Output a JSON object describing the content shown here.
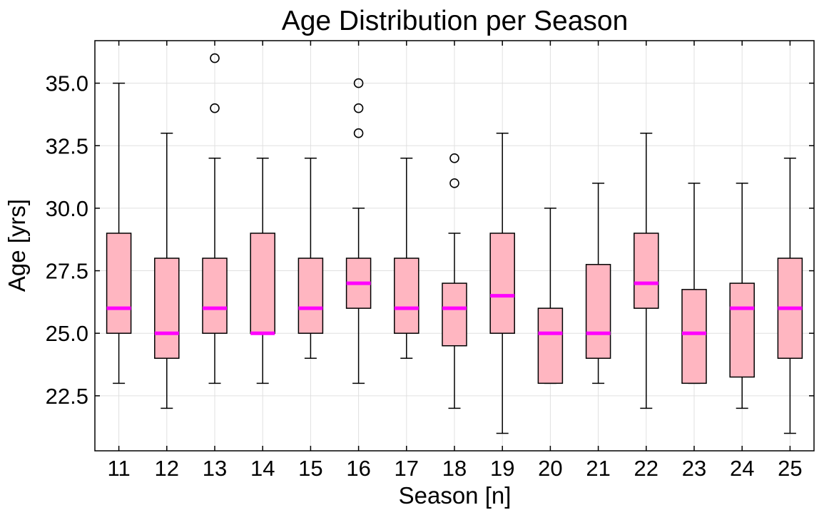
{
  "chart_data": {
    "type": "box",
    "title": "Age Distribution per Season",
    "xlabel": "Season [n]",
    "ylabel": "Age [yrs]",
    "categories": [
      "11",
      "12",
      "13",
      "14",
      "15",
      "16",
      "17",
      "18",
      "19",
      "20",
      "21",
      "22",
      "23",
      "24",
      "25"
    ],
    "ylim": [
      20.3,
      36.7
    ],
    "yticks": [
      22.5,
      25.0,
      27.5,
      30.0,
      32.5,
      35.0
    ],
    "ytick_labels": [
      "22.5",
      "25.0",
      "27.5",
      "30.0",
      "32.5",
      "35.0"
    ],
    "grid": true,
    "colors": {
      "box_fill": "#ffb6c1",
      "median": "#ff00ff",
      "edge": "#000000",
      "grid": "#e0e0e0"
    },
    "boxes": [
      {
        "season": "11",
        "whisker_low": 23,
        "q1": 25,
        "median": 26,
        "q3": 29,
        "whisker_high": 35,
        "outliers": []
      },
      {
        "season": "12",
        "whisker_low": 22,
        "q1": 24,
        "median": 25,
        "q3": 28,
        "whisker_high": 33,
        "outliers": []
      },
      {
        "season": "13",
        "whisker_low": 23,
        "q1": 25,
        "median": 26,
        "q3": 28,
        "whisker_high": 32,
        "outliers": [
          34,
          36
        ]
      },
      {
        "season": "14",
        "whisker_low": 23,
        "q1": 25,
        "median": 25,
        "q3": 29,
        "whisker_high": 32,
        "outliers": []
      },
      {
        "season": "15",
        "whisker_low": 24,
        "q1": 25,
        "median": 26,
        "q3": 28,
        "whisker_high": 32,
        "outliers": []
      },
      {
        "season": "16",
        "whisker_low": 23,
        "q1": 26,
        "median": 27,
        "q3": 28,
        "whisker_high": 30,
        "outliers": [
          33,
          34,
          35
        ]
      },
      {
        "season": "17",
        "whisker_low": 24,
        "q1": 25,
        "median": 26,
        "q3": 28,
        "whisker_high": 32,
        "outliers": []
      },
      {
        "season": "18",
        "whisker_low": 22,
        "q1": 24.5,
        "median": 26,
        "q3": 27,
        "whisker_high": 29,
        "outliers": [
          31,
          32
        ]
      },
      {
        "season": "19",
        "whisker_low": 21,
        "q1": 25,
        "median": 26.5,
        "q3": 29,
        "whisker_high": 33,
        "outliers": []
      },
      {
        "season": "20",
        "whisker_low": 23,
        "q1": 23,
        "median": 25,
        "q3": 26,
        "whisker_high": 30,
        "outliers": []
      },
      {
        "season": "21",
        "whisker_low": 23,
        "q1": 24,
        "median": 25,
        "q3": 27.75,
        "whisker_high": 31,
        "outliers": []
      },
      {
        "season": "22",
        "whisker_low": 22,
        "q1": 26,
        "median": 27,
        "q3": 29,
        "whisker_high": 33,
        "outliers": []
      },
      {
        "season": "23",
        "whisker_low": 23,
        "q1": 23,
        "median": 25,
        "q3": 26.75,
        "whisker_high": 31,
        "outliers": []
      },
      {
        "season": "24",
        "whisker_low": 22,
        "q1": 23.25,
        "median": 26,
        "q3": 27,
        "whisker_high": 31,
        "outliers": []
      },
      {
        "season": "25",
        "whisker_low": 21,
        "q1": 24,
        "median": 26,
        "q3": 28,
        "whisker_high": 32,
        "outliers": []
      }
    ]
  }
}
